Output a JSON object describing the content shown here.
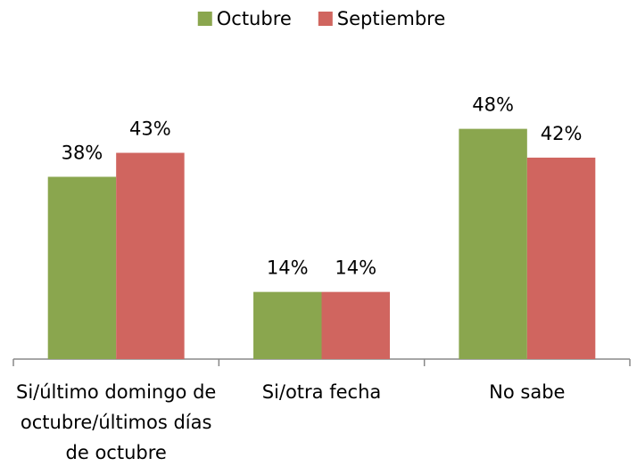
{
  "chart_data": {
    "type": "bar",
    "categories": [
      "Si/último domingo de octubre/últimos días de octubre",
      "Si/otra fecha",
      "No sabe"
    ],
    "series": [
      {
        "name": "Octubre",
        "color": "#8aa64e",
        "values": [
          38,
          14,
          48
        ],
        "value_labels": [
          "38%",
          "14%",
          "48%"
        ]
      },
      {
        "name": "Septiembre",
        "color": "#d0655f",
        "values": [
          43,
          14,
          42
        ],
        "value_labels": [
          "43%",
          "14%",
          "42%"
        ]
      }
    ],
    "ylim": [
      0,
      60
    ],
    "legend": "top"
  }
}
